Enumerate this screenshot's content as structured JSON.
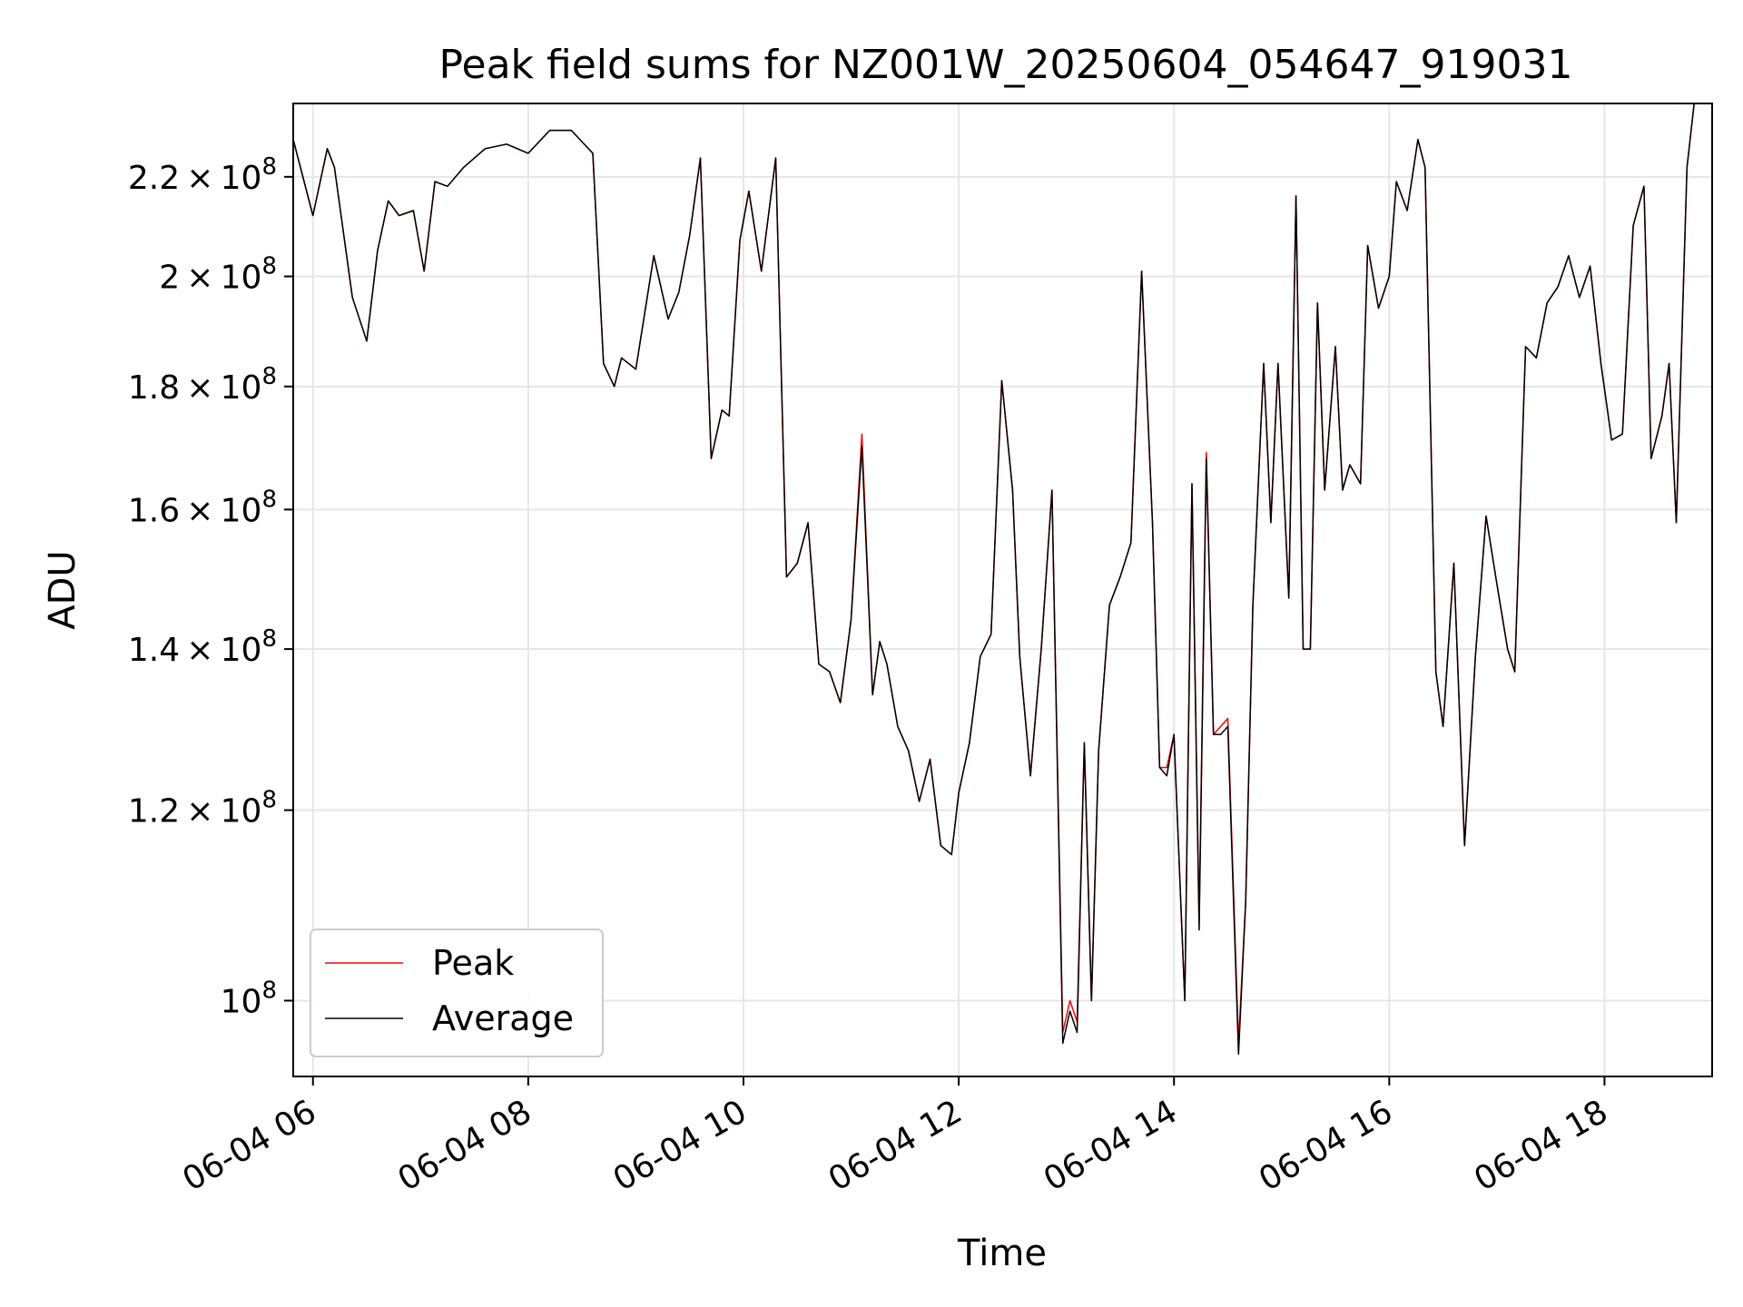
{
  "chart_data": {
    "type": "line",
    "title": "Peak field sums for NZ001W_20250604_054647_919031",
    "xlabel": "Time",
    "ylabel": "ADU",
    "y_scale": "log",
    "ylim": [
      93000000,
      236000000
    ],
    "xlim": [
      "06-04 05:49",
      "06-04 19:00"
    ],
    "grid": true,
    "legend_position": "lower-left",
    "x_ticks": [
      {
        "time": "06-04 06:00",
        "label": "06-04 06"
      },
      {
        "time": "06-04 08:00",
        "label": "06-04 08"
      },
      {
        "time": "06-04 10:00",
        "label": "06-04 10"
      },
      {
        "time": "06-04 12:00",
        "label": "06-04 12"
      },
      {
        "time": "06-04 14:00",
        "label": "06-04 14"
      },
      {
        "time": "06-04 16:00",
        "label": "06-04 16"
      },
      {
        "time": "06-04 18:00",
        "label": "06-04 18"
      }
    ],
    "y_ticks": [
      {
        "value": 100000000,
        "mantissa": "",
        "exponent": "8"
      },
      {
        "value": 120000000,
        "mantissa": "1.2",
        "exponent": "8"
      },
      {
        "value": 140000000,
        "mantissa": "1.4",
        "exponent": "8"
      },
      {
        "value": 160000000,
        "mantissa": "1.6",
        "exponent": "8"
      },
      {
        "value": 180000000,
        "mantissa": "1.8",
        "exponent": "8"
      },
      {
        "value": 200000000,
        "mantissa": "2",
        "exponent": "8"
      },
      {
        "value": 220000000,
        "mantissa": "2.2",
        "exponent": "8"
      }
    ],
    "times": [
      "06-04 05:49",
      "06-04 06:00",
      "06-04 06:08",
      "06-04 06:12",
      "06-04 06:22",
      "06-04 06:30",
      "06-04 06:36",
      "06-04 06:42",
      "06-04 06:48",
      "06-04 06:56",
      "06-04 07:02",
      "06-04 07:08",
      "06-04 07:15",
      "06-04 07:24",
      "06-04 07:36",
      "06-04 07:48",
      "06-04 08:00",
      "06-04 08:12",
      "06-04 08:24",
      "06-04 08:36",
      "06-04 08:42",
      "06-04 08:48",
      "06-04 08:52",
      "06-04 09:00",
      "06-04 09:10",
      "06-04 09:18",
      "06-04 09:24",
      "06-04 09:30",
      "06-04 09:36",
      "06-04 09:42",
      "06-04 09:48",
      "06-04 09:52",
      "06-04 09:58",
      "06-04 10:03",
      "06-04 10:10",
      "06-04 10:18",
      "06-04 10:24",
      "06-04 10:30",
      "06-04 10:36",
      "06-04 10:42",
      "06-04 10:48",
      "06-04 10:54",
      "06-04 11:00",
      "06-04 11:06",
      "06-04 11:12",
      "06-04 11:16",
      "06-04 11:20",
      "06-04 11:26",
      "06-04 11:32",
      "06-04 11:38",
      "06-04 11:44",
      "06-04 11:50",
      "06-04 11:56",
      "06-04 12:00",
      "06-04 12:06",
      "06-04 12:12",
      "06-04 12:18",
      "06-04 12:24",
      "06-04 12:30",
      "06-04 12:34",
      "06-04 12:40",
      "06-04 12:46",
      "06-04 12:52",
      "06-04 12:58",
      "06-04 13:02",
      "06-04 13:06",
      "06-04 13:10",
      "06-04 13:14",
      "06-04 13:18",
      "06-04 13:24",
      "06-04 13:30",
      "06-04 13:36",
      "06-04 13:42",
      "06-04 13:48",
      "06-04 13:52",
      "06-04 13:56",
      "06-04 14:00",
      "06-04 14:06",
      "06-04 14:10",
      "06-04 14:14",
      "06-04 14:18",
      "06-04 14:22",
      "06-04 14:26",
      "06-04 14:30",
      "06-04 14:36",
      "06-04 14:40",
      "06-04 14:44",
      "06-04 14:50",
      "06-04 14:54",
      "06-04 14:58",
      "06-04 15:04",
      "06-04 15:08",
      "06-04 15:12",
      "06-04 15:16",
      "06-04 15:20",
      "06-04 15:24",
      "06-04 15:30",
      "06-04 15:34",
      "06-04 15:38",
      "06-04 15:44",
      "06-04 15:48",
      "06-04 15:54",
      "06-04 16:00",
      "06-04 16:04",
      "06-04 16:10",
      "06-04 16:16",
      "06-04 16:20",
      "06-04 16:26",
      "06-04 16:30",
      "06-04 16:36",
      "06-04 16:42",
      "06-04 16:48",
      "06-04 16:54",
      "06-04 17:00",
      "06-04 17:06",
      "06-04 17:10",
      "06-04 17:16",
      "06-04 17:22",
      "06-04 17:28",
      "06-04 17:34",
      "06-04 17:40",
      "06-04 17:46",
      "06-04 17:52",
      "06-04 17:58",
      "06-04 18:04",
      "06-04 18:10",
      "06-04 18:16",
      "06-04 18:22",
      "06-04 18:26",
      "06-04 18:32",
      "06-04 18:36",
      "06-04 18:40",
      "06-04 18:46",
      "06-04 18:50",
      "06-04 19:00"
    ],
    "series": [
      {
        "name": "Peak",
        "color": "#ff0000",
        "values": [
          228,
          212,
          226,
          222,
          196,
          188,
          205,
          215,
          212,
          213,
          201,
          219,
          218,
          222,
          226,
          227,
          225,
          230,
          230,
          225,
          184,
          180,
          185,
          183,
          204,
          192,
          197,
          208,
          224,
          168,
          176,
          175,
          207,
          217,
          201,
          224,
          150,
          152,
          158,
          138,
          137,
          133,
          144,
          172,
          134,
          141,
          138,
          130,
          127,
          121,
          126,
          116,
          115,
          122,
          128,
          139,
          142,
          181,
          163,
          139,
          124,
          140,
          163,
          97,
          100,
          98,
          128,
          100,
          127,
          146,
          150,
          155,
          201,
          158,
          125,
          125,
          129,
          100,
          164,
          108,
          169,
          129,
          130,
          131,
          96,
          110,
          146,
          184,
          158,
          184,
          147,
          216,
          140,
          140,
          195,
          163,
          187,
          163,
          167,
          164,
          206,
          194,
          200,
          219,
          213,
          228,
          222,
          137,
          130,
          152,
          116,
          139,
          159,
          149,
          140,
          137,
          187,
          185,
          195,
          198,
          204,
          196,
          202,
          184,
          171,
          172,
          210,
          218,
          168,
          175,
          184,
          158,
          222,
          236
        ]
      },
      {
        "name": "Average",
        "color": "#000000",
        "values": [
          228,
          212,
          226,
          222,
          196,
          188,
          205,
          215,
          212,
          213,
          201,
          219,
          218,
          222,
          226,
          227,
          225,
          230,
          230,
          225,
          184,
          180,
          185,
          183,
          204,
          192,
          197,
          208,
          224,
          168,
          176,
          175,
          207,
          217,
          201,
          224,
          150,
          152,
          158,
          138,
          137,
          133,
          144,
          170,
          134,
          141,
          138,
          130,
          127,
          121,
          126,
          116,
          115,
          122,
          128,
          139,
          142,
          181,
          163,
          139,
          124,
          140,
          163,
          96,
          99,
          97,
          128,
          100,
          127,
          146,
          150,
          155,
          201,
          158,
          125,
          124,
          129,
          100,
          164,
          107,
          168,
          129,
          129,
          130,
          95,
          110,
          146,
          184,
          158,
          184,
          147,
          216,
          140,
          140,
          195,
          163,
          187,
          163,
          167,
          164,
          206,
          194,
          200,
          219,
          213,
          228,
          222,
          137,
          130,
          152,
          116,
          139,
          159,
          149,
          140,
          137,
          187,
          185,
          195,
          198,
          204,
          196,
          202,
          184,
          171,
          172,
          210,
          218,
          168,
          175,
          184,
          158,
          222,
          236
        ]
      }
    ],
    "value_unit_multiplier": 1000000
  }
}
